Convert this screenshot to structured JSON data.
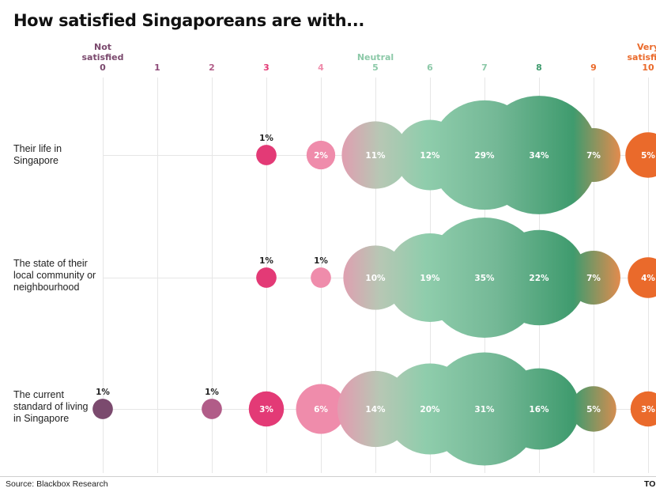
{
  "title": "How satisfied Singaporeans are with...",
  "source": "Source: Blackbox Research",
  "brand": "TO",
  "colors": {
    "gridline": "#e6e6e6",
    "baseline": "#d0d0d0",
    "scale_0": "#7b4a6e",
    "scale_1": "#8e4a78",
    "scale_2": "#b15c88",
    "scale_3": "#e33a76",
    "scale_4": "#ef8cab",
    "scale_neutral": "#8cc9a8",
    "scale_8": "#3f9b6e",
    "scale_10": "#ea6a2b",
    "gradient_start": "#e29cb0",
    "gradient_end": "#f08a4b"
  },
  "chart_data": {
    "type": "bubble",
    "title": "How satisfied Singaporeans are with...",
    "x_scale": [
      0,
      1,
      2,
      3,
      4,
      5,
      6,
      7,
      8,
      9,
      10
    ],
    "scale_annotations": [
      {
        "x": 0,
        "text": "Not\nsatisfied"
      },
      {
        "x": 5,
        "text": "Neutral"
      },
      {
        "x": 10,
        "text": "Very\nsatisfied"
      }
    ],
    "rows": [
      {
        "label": "Their life in\nSingapore",
        "values": [
          {
            "x": 3,
            "pct": 1,
            "label": "1%"
          },
          {
            "x": 4,
            "pct": 2,
            "label": "2%"
          },
          {
            "x": 5,
            "pct": 11,
            "label": "11%"
          },
          {
            "x": 6,
            "pct": 12,
            "label": "12%"
          },
          {
            "x": 7,
            "pct": 29,
            "label": "29%"
          },
          {
            "x": 8,
            "pct": 34,
            "label": "34%"
          },
          {
            "x": 9,
            "pct": 7,
            "label": "7%"
          },
          {
            "x": 10,
            "pct": 5,
            "label": "5%"
          }
        ]
      },
      {
        "label": "The state of their\nlocal community or\nneighbourhood",
        "values": [
          {
            "x": 3,
            "pct": 1,
            "label": "1%"
          },
          {
            "x": 4,
            "pct": 1,
            "label": "1%"
          },
          {
            "x": 5,
            "pct": 10,
            "label": "10%"
          },
          {
            "x": 6,
            "pct": 19,
            "label": "19%"
          },
          {
            "x": 7,
            "pct": 35,
            "label": "35%"
          },
          {
            "x": 8,
            "pct": 22,
            "label": "22%"
          },
          {
            "x": 9,
            "pct": 7,
            "label": "7%"
          },
          {
            "x": 10,
            "pct": 4,
            "label": "4%"
          }
        ]
      },
      {
        "label": "The current\nstandard of living\nin Singapore",
        "values": [
          {
            "x": 0,
            "pct": 1,
            "label": "1%"
          },
          {
            "x": 2,
            "pct": 1,
            "label": "1%"
          },
          {
            "x": 3,
            "pct": 3,
            "label": "3%"
          },
          {
            "x": 4,
            "pct": 6,
            "label": "6%"
          },
          {
            "x": 5,
            "pct": 14,
            "label": "14%"
          },
          {
            "x": 6,
            "pct": 20,
            "label": "20%"
          },
          {
            "x": 7,
            "pct": 31,
            "label": "31%"
          },
          {
            "x": 8,
            "pct": 16,
            "label": "16%"
          },
          {
            "x": 9,
            "pct": 5,
            "label": "5%"
          },
          {
            "x": 10,
            "pct": 3,
            "label": "3%"
          }
        ]
      }
    ]
  }
}
